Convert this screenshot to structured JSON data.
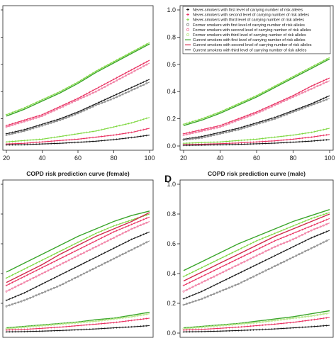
{
  "legend_entries": [
    {
      "text": "Never-smokers with first level of carrying number of risk alleles",
      "color": "#111111",
      "marker": "+"
    },
    {
      "text": "Never-smokers with second level of carrying number of risk alleles",
      "color": "#e8285a",
      "marker": "+"
    },
    {
      "text": "Never-smokers with third level of carrying number of risk alleles",
      "color": "#7ad63a",
      "marker": "+"
    },
    {
      "text": "Former smokers with first level of carrying number of risk alleles",
      "color": "#888888",
      "marker": "o"
    },
    {
      "text": "Former smokers with second level of carrying number of risk alleles",
      "color": "#f07aa0",
      "marker": "o"
    },
    {
      "text": "Former smokers with third level of carrying number of risk alleles",
      "color": "#b8e68a",
      "marker": "o"
    },
    {
      "text": "Current smokers with first level of carrying number of risk alleles",
      "color": "#3aa52a",
      "marker": "-"
    },
    {
      "text": "Current smokers with second level of carrying number of risk alleles",
      "color": "#d0284a",
      "marker": "-"
    },
    {
      "text": "Current smokers with third level of carrying number of risk alleles",
      "color": "#404040",
      "marker": "-"
    }
  ],
  "chart_data": [
    {
      "type": "line",
      "panel_label": "",
      "title": "",
      "xlim": [
        20,
        100
      ],
      "ylim": [
        0,
        1
      ],
      "x_ticks": [
        "20",
        "40",
        "60",
        "80",
        "100"
      ],
      "y_ticks": [],
      "x": [
        20,
        30,
        40,
        50,
        60,
        70,
        80,
        90,
        100
      ],
      "series": [
        {
          "color": "#7ad63a",
          "marker": "+",
          "values": [
            0.23,
            0.28,
            0.34,
            0.4,
            0.47,
            0.55,
            0.62,
            0.69,
            0.76
          ]
        },
        {
          "color": "#3aa52a",
          "marker": "-",
          "values": [
            0.22,
            0.27,
            0.33,
            0.39,
            0.46,
            0.54,
            0.61,
            0.68,
            0.75
          ]
        },
        {
          "color": "#e8285a",
          "marker": "+",
          "values": [
            0.15,
            0.19,
            0.23,
            0.29,
            0.35,
            0.42,
            0.49,
            0.56,
            0.63
          ]
        },
        {
          "color": "#f07aa0",
          "marker": "o",
          "values": [
            0.14,
            0.18,
            0.22,
            0.28,
            0.34,
            0.4,
            0.47,
            0.54,
            0.61
          ]
        },
        {
          "color": "#111111",
          "marker": "+",
          "values": [
            0.09,
            0.12,
            0.16,
            0.2,
            0.25,
            0.31,
            0.37,
            0.43,
            0.49
          ]
        },
        {
          "color": "#888888",
          "marker": "o",
          "values": [
            0.08,
            0.11,
            0.15,
            0.19,
            0.24,
            0.3,
            0.35,
            0.41,
            0.47
          ]
        },
        {
          "color": "#7ad63a",
          "marker": "+",
          "values": [
            0.03,
            0.04,
            0.05,
            0.07,
            0.09,
            0.11,
            0.14,
            0.17,
            0.21
          ]
        },
        {
          "color": "#e8285a",
          "marker": "+",
          "values": [
            0.015,
            0.02,
            0.03,
            0.04,
            0.05,
            0.065,
            0.08,
            0.1,
            0.13
          ]
        },
        {
          "color": "#111111",
          "marker": "+",
          "values": [
            0.008,
            0.01,
            0.015,
            0.02,
            0.027,
            0.035,
            0.047,
            0.062,
            0.08
          ]
        }
      ]
    },
    {
      "type": "line",
      "panel_label": "",
      "title": "",
      "xlim": [
        20,
        100
      ],
      "ylim": [
        0,
        1
      ],
      "x_ticks": [
        "20",
        "40",
        "60",
        "80",
        "100"
      ],
      "y_ticks": [
        "0.0",
        "0.2",
        "0.4",
        "0.6",
        "0.8",
        "1.0"
      ],
      "x": [
        20,
        30,
        40,
        50,
        60,
        70,
        80,
        90,
        100
      ],
      "series": [
        {
          "color": "#7ad63a",
          "marker": "+",
          "values": [
            0.16,
            0.2,
            0.25,
            0.31,
            0.37,
            0.44,
            0.51,
            0.58,
            0.65
          ]
        },
        {
          "color": "#3aa52a",
          "marker": "-",
          "values": [
            0.15,
            0.19,
            0.24,
            0.3,
            0.36,
            0.43,
            0.5,
            0.57,
            0.64
          ]
        },
        {
          "color": "#e8285a",
          "marker": "+",
          "values": [
            0.09,
            0.12,
            0.15,
            0.2,
            0.25,
            0.31,
            0.37,
            0.44,
            0.5
          ]
        },
        {
          "color": "#f07aa0",
          "marker": "o",
          "values": [
            0.08,
            0.11,
            0.14,
            0.19,
            0.24,
            0.3,
            0.36,
            0.42,
            0.48
          ]
        },
        {
          "color": "#111111",
          "marker": "+",
          "values": [
            0.05,
            0.07,
            0.1,
            0.13,
            0.17,
            0.21,
            0.26,
            0.31,
            0.37
          ]
        },
        {
          "color": "#888888",
          "marker": "o",
          "values": [
            0.045,
            0.06,
            0.09,
            0.12,
            0.16,
            0.2,
            0.25,
            0.3,
            0.35
          ]
        },
        {
          "color": "#7ad63a",
          "marker": "+",
          "values": [
            0.02,
            0.025,
            0.03,
            0.04,
            0.05,
            0.065,
            0.08,
            0.1,
            0.13
          ]
        },
        {
          "color": "#e8285a",
          "marker": "+",
          "values": [
            0.01,
            0.013,
            0.017,
            0.022,
            0.03,
            0.038,
            0.05,
            0.065,
            0.085
          ]
        },
        {
          "color": "#111111",
          "marker": "+",
          "values": [
            0.005,
            0.007,
            0.009,
            0.012,
            0.016,
            0.021,
            0.028,
            0.036,
            0.047
          ]
        }
      ]
    },
    {
      "type": "line",
      "panel_label": "",
      "title": "COPD risk prediction curve (female)",
      "xlim": [
        20,
        100
      ],
      "ylim": [
        0,
        1
      ],
      "x_ticks": [],
      "y_ticks": [],
      "x": [
        20,
        30,
        40,
        50,
        60,
        70,
        80,
        90,
        100
      ],
      "series": [
        {
          "color": "#3aa52a",
          "marker": "-",
          "values": [
            0.41,
            0.47,
            0.53,
            0.59,
            0.65,
            0.7,
            0.75,
            0.79,
            0.82
          ]
        },
        {
          "color": "#7ad63a",
          "marker": "+",
          "values": [
            0.37,
            0.43,
            0.49,
            0.55,
            0.61,
            0.67,
            0.72,
            0.76,
            0.8
          ]
        },
        {
          "color": "#d0284a",
          "marker": "-",
          "values": [
            0.34,
            0.4,
            0.46,
            0.53,
            0.59,
            0.65,
            0.7,
            0.75,
            0.81
          ]
        },
        {
          "color": "#e8285a",
          "marker": "+",
          "values": [
            0.32,
            0.38,
            0.44,
            0.5,
            0.56,
            0.62,
            0.68,
            0.73,
            0.78
          ]
        },
        {
          "color": "#f07aa0",
          "marker": "o",
          "values": [
            0.28,
            0.34,
            0.4,
            0.46,
            0.52,
            0.58,
            0.64,
            0.7,
            0.75
          ]
        },
        {
          "color": "#111111",
          "marker": "+",
          "values": [
            0.22,
            0.27,
            0.33,
            0.39,
            0.45,
            0.51,
            0.57,
            0.63,
            0.68
          ]
        },
        {
          "color": "#888888",
          "marker": "o",
          "values": [
            0.18,
            0.22,
            0.27,
            0.32,
            0.38,
            0.44,
            0.5,
            0.56,
            0.62
          ]
        },
        {
          "color": "#3aa52a",
          "marker": "-",
          "values": [
            0.035,
            0.045,
            0.055,
            0.065,
            0.075,
            0.09,
            0.1,
            0.12,
            0.14
          ]
        },
        {
          "color": "#b8e68a",
          "marker": "o",
          "values": [
            0.03,
            0.04,
            0.05,
            0.06,
            0.07,
            0.08,
            0.095,
            0.11,
            0.13
          ]
        },
        {
          "color": "#e8285a",
          "marker": "+",
          "values": [
            0.02,
            0.025,
            0.032,
            0.04,
            0.05,
            0.06,
            0.07,
            0.085,
            0.1
          ]
        },
        {
          "color": "#111111",
          "marker": "+",
          "values": [
            0.008,
            0.01,
            0.013,
            0.017,
            0.022,
            0.028,
            0.035,
            0.042,
            0.05
          ]
        }
      ]
    },
    {
      "type": "line",
      "panel_label": "D",
      "title": "COPD risk prediction curve (male)",
      "xlim": [
        20,
        100
      ],
      "ylim": [
        0,
        1
      ],
      "x_ticks": [],
      "y_ticks": [
        "0.0",
        "0.2",
        "0.4",
        "0.6",
        "0.8",
        "1.0"
      ],
      "x": [
        20,
        30,
        40,
        50,
        60,
        70,
        80,
        90,
        100
      ],
      "series": [
        {
          "color": "#3aa52a",
          "marker": "-",
          "values": [
            0.42,
            0.48,
            0.54,
            0.6,
            0.65,
            0.7,
            0.75,
            0.79,
            0.83
          ]
        },
        {
          "color": "#7ad63a",
          "marker": "+",
          "values": [
            0.38,
            0.44,
            0.5,
            0.56,
            0.62,
            0.67,
            0.72,
            0.77,
            0.81
          ]
        },
        {
          "color": "#d0284a",
          "marker": "-",
          "values": [
            0.35,
            0.41,
            0.47,
            0.53,
            0.59,
            0.65,
            0.7,
            0.75,
            0.8
          ]
        },
        {
          "color": "#e8285a",
          "marker": "+",
          "values": [
            0.32,
            0.38,
            0.44,
            0.5,
            0.56,
            0.62,
            0.67,
            0.72,
            0.77
          ]
        },
        {
          "color": "#f07aa0",
          "marker": "o",
          "values": [
            0.28,
            0.34,
            0.4,
            0.46,
            0.52,
            0.58,
            0.63,
            0.69,
            0.74
          ]
        },
        {
          "color": "#111111",
          "marker": "+",
          "values": [
            0.23,
            0.28,
            0.34,
            0.4,
            0.46,
            0.52,
            0.58,
            0.64,
            0.69
          ]
        },
        {
          "color": "#888888",
          "marker": "o",
          "values": [
            0.19,
            0.23,
            0.28,
            0.33,
            0.39,
            0.45,
            0.51,
            0.57,
            0.63
          ]
        },
        {
          "color": "#3aa52a",
          "marker": "-",
          "values": [
            0.035,
            0.045,
            0.055,
            0.065,
            0.08,
            0.095,
            0.11,
            0.13,
            0.15
          ]
        },
        {
          "color": "#b8e68a",
          "marker": "o",
          "values": [
            0.03,
            0.04,
            0.05,
            0.06,
            0.07,
            0.085,
            0.1,
            0.115,
            0.135
          ]
        },
        {
          "color": "#e8285a",
          "marker": "+",
          "values": [
            0.02,
            0.025,
            0.032,
            0.04,
            0.05,
            0.06,
            0.072,
            0.088,
            0.105
          ]
        },
        {
          "color": "#111111",
          "marker": "+",
          "values": [
            0.008,
            0.01,
            0.013,
            0.017,
            0.022,
            0.028,
            0.035,
            0.043,
            0.052
          ]
        }
      ]
    }
  ]
}
